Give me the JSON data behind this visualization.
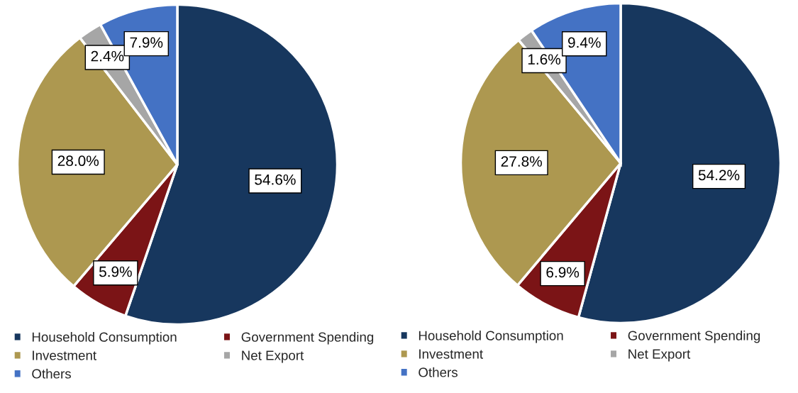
{
  "chart_data": [
    {
      "type": "pie",
      "categories": [
        "Household Consumption",
        "Government Spending",
        "Investment",
        "Net Export",
        "Others"
      ],
      "values": [
        54.6,
        5.9,
        28.0,
        2.4,
        7.9
      ],
      "value_labels": [
        "54.6%",
        "5.9%",
        "28.0%",
        "2.4%",
        "7.9%"
      ],
      "colors": [
        "#17375e",
        "#7b1416",
        "#ad9850",
        "#a6a6a6",
        "#4472c4"
      ],
      "legend": "bottom"
    },
    {
      "type": "pie",
      "categories": [
        "Household Consumption",
        "Government Spending",
        "Investment",
        "Net Export",
        "Others"
      ],
      "values": [
        54.2,
        6.9,
        27.8,
        1.6,
        9.4
      ],
      "value_labels": [
        "54.2%",
        "6.9%",
        "27.8%",
        "1.6%",
        "9.4%"
      ],
      "colors": [
        "#17375e",
        "#7b1416",
        "#ad9850",
        "#a6a6a6",
        "#4472c4"
      ],
      "legend": "bottom"
    }
  ]
}
